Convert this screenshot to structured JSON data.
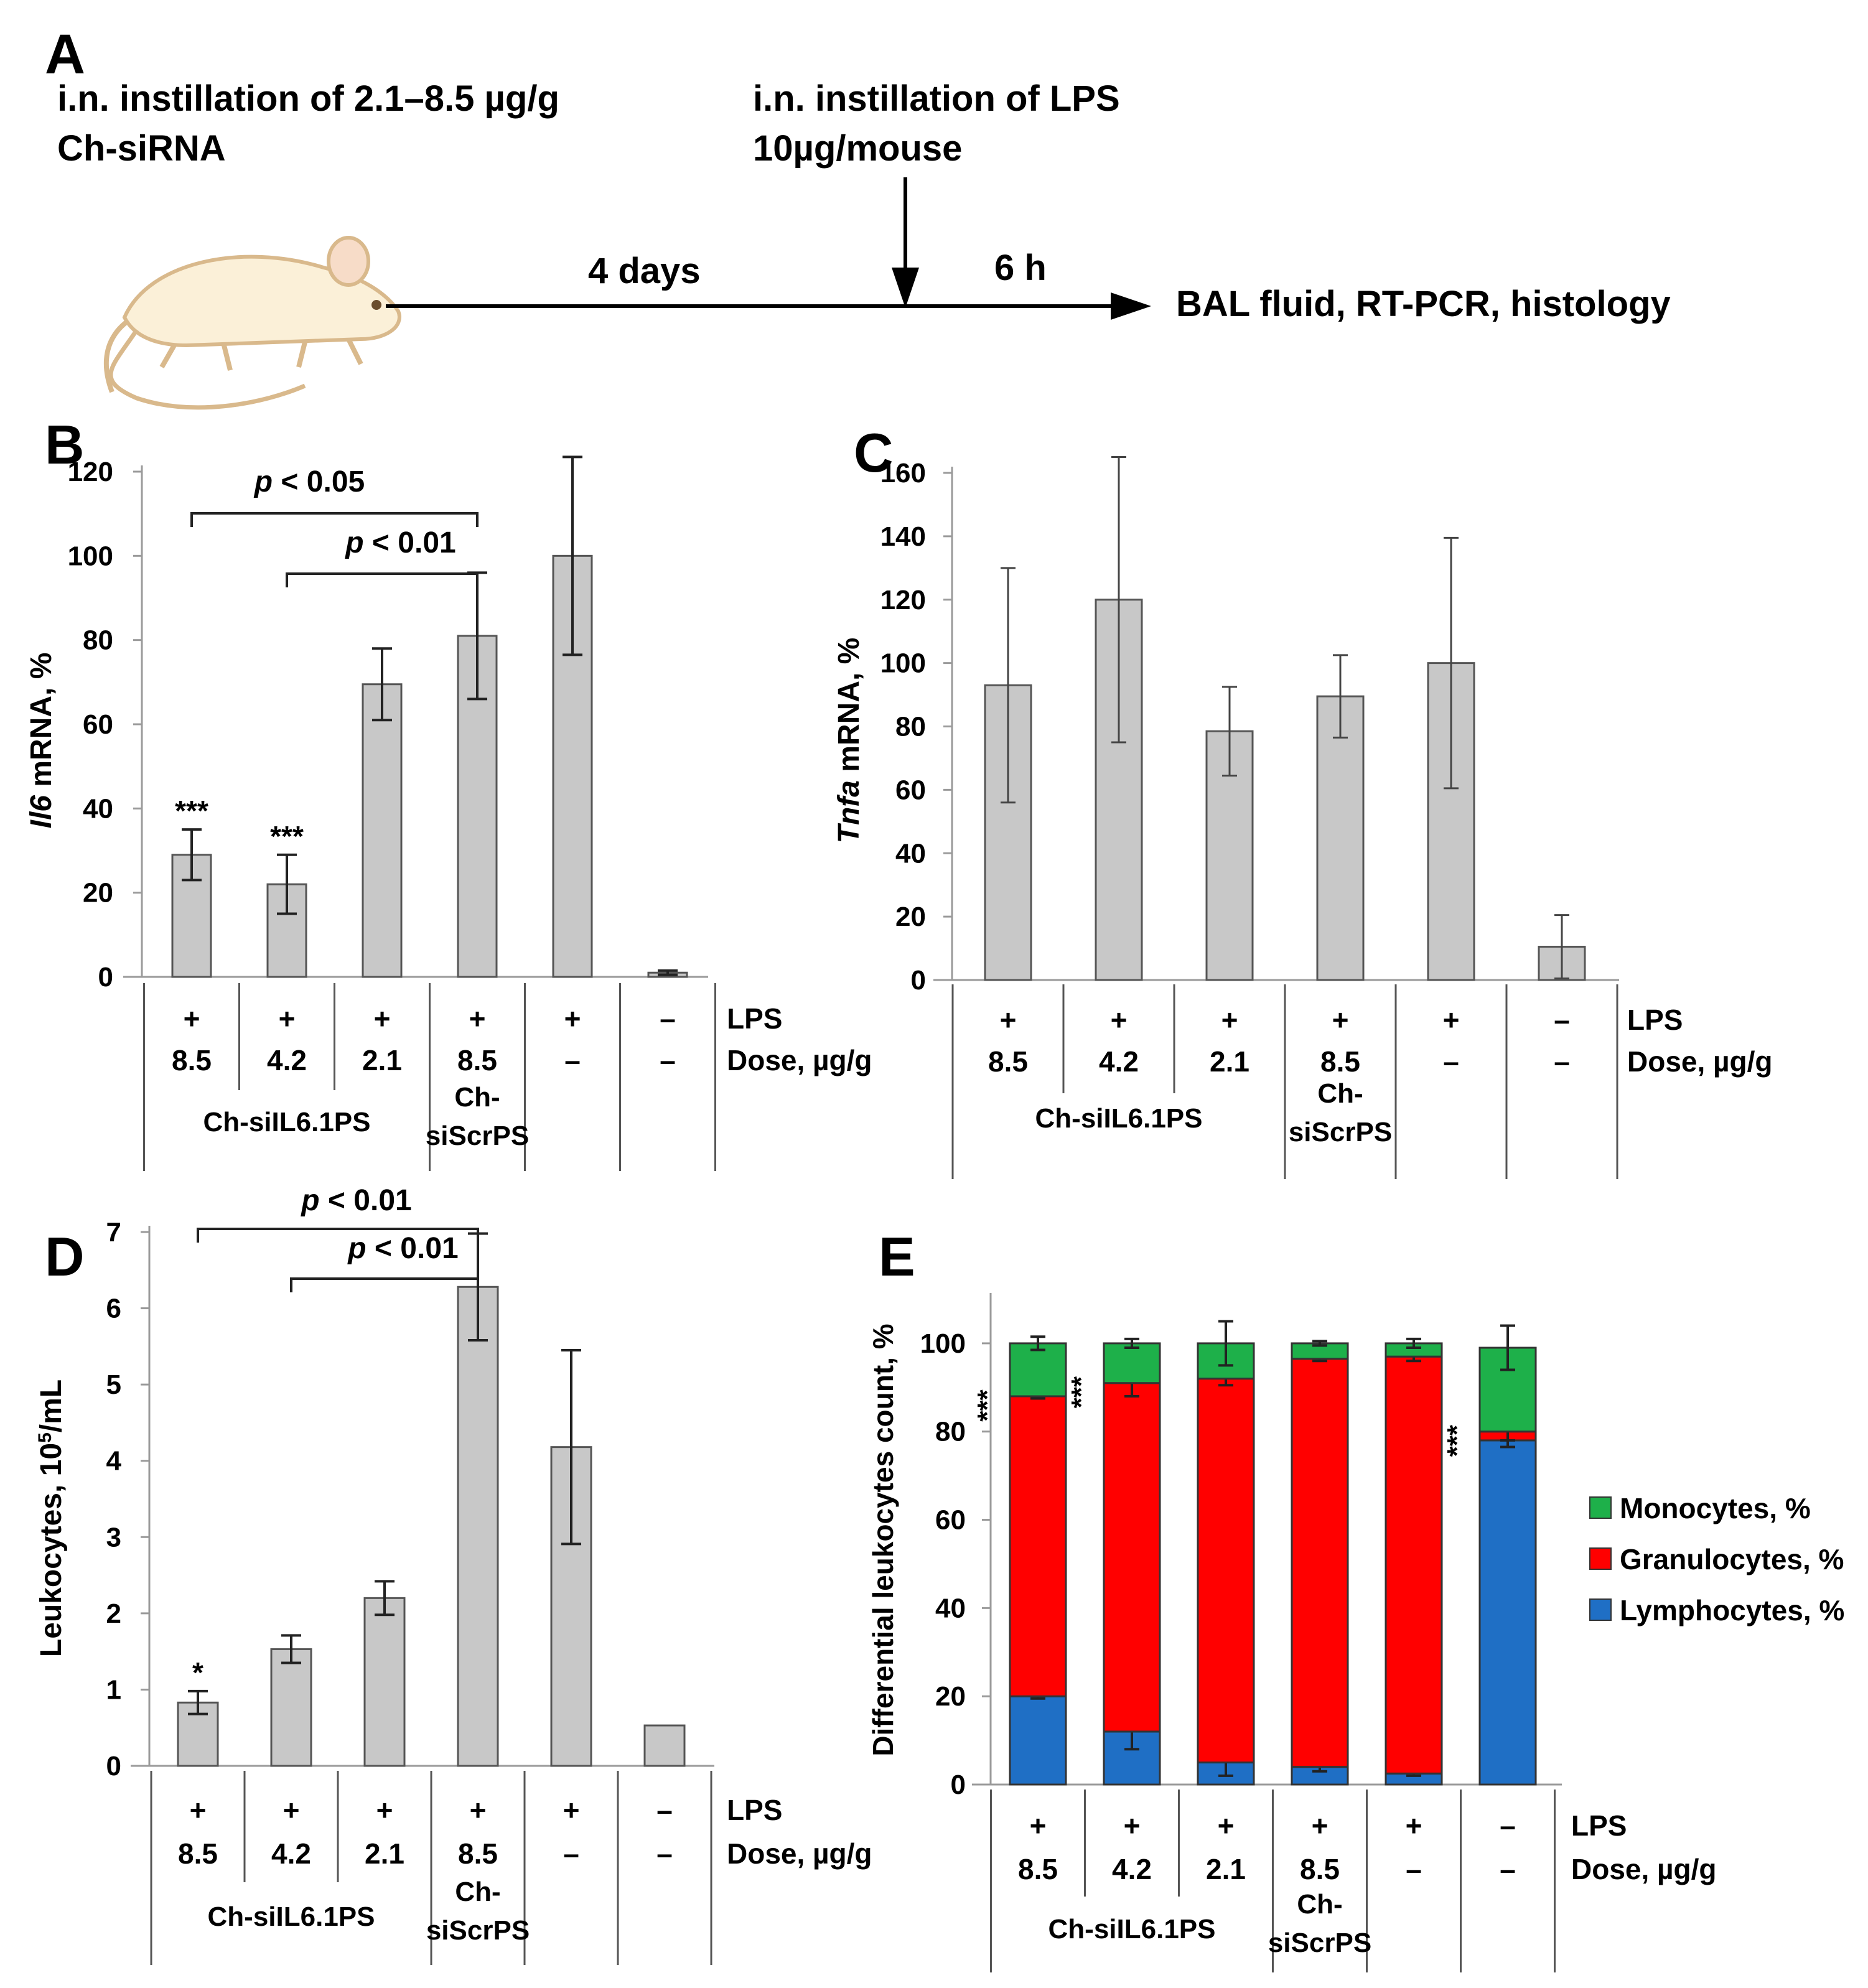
{
  "panel_a": {
    "label": "A",
    "step1_line1": "i.n. instillation of 2.1–8.5 µg/g",
    "step1_line2": "Ch-siRNA",
    "step2_line1": "i.n. instillation of LPS",
    "step2_line2": "10µg/mouse",
    "interval1": "4 days",
    "interval2": "6 h",
    "endpoint": "BAL fluid, RT-PCR, histology",
    "mouse_icon": "mouse-icon"
  },
  "common": {
    "lps_row_label": "LPS",
    "dose_row_label": "Dose, µg/g",
    "lps": [
      "+",
      "+",
      "+",
      "+",
      "+",
      "–"
    ],
    "dose": [
      "8.5",
      "4.2",
      "2.1",
      "8.5",
      "–",
      "–"
    ],
    "group1": "Ch-siIL6.1PS",
    "group2_line1": "Ch-",
    "group2_line2": "siScrPS"
  },
  "chart_data": [
    {
      "panel": "B",
      "type": "bar",
      "ylabel_italic": "Il6",
      "ylabel_rest": " mRNA, %",
      "ylim": [
        0,
        120
      ],
      "yticks": [
        0,
        20,
        40,
        60,
        80,
        100,
        120
      ],
      "values": [
        29,
        22,
        69.5,
        81,
        100,
        1
      ],
      "errors": [
        6,
        7,
        8.5,
        15,
        23.5,
        0.5
      ],
      "annotations": [
        "***",
        "***",
        "",
        "",
        "",
        ""
      ],
      "brackets": [
        {
          "from": 0,
          "to": 3,
          "p_italic": "p",
          "p_rest": " < 0.05"
        },
        {
          "from": 1,
          "to": 3,
          "p_italic": "p",
          "p_rest": " < 0.01"
        }
      ]
    },
    {
      "panel": "C",
      "type": "bar",
      "ylabel_italic": "Tnfa",
      "ylabel_rest": " mRNA, %",
      "ylim": [
        0,
        160
      ],
      "yticks": [
        0,
        20,
        40,
        60,
        80,
        100,
        120,
        140,
        160
      ],
      "values": [
        93,
        120,
        78.5,
        89.5,
        100,
        10.5
      ],
      "errors": [
        37,
        45,
        14,
        13,
        39.5,
        10
      ],
      "annotations": [
        "",
        "",
        "",
        "",
        "",
        ""
      ],
      "brackets": []
    },
    {
      "panel": "D",
      "type": "bar",
      "ylabel_main": "Leukocytes, 10",
      "ylabel_sup": "5",
      "ylabel_tail": "/mL",
      "ylim": [
        0,
        7
      ],
      "yticks": [
        0,
        1,
        2,
        3,
        4,
        5,
        6,
        7
      ],
      "values": [
        0.83,
        1.53,
        2.2,
        6.28,
        4.18,
        0.53
      ],
      "errors": [
        0.15,
        0.18,
        0.22,
        0.7,
        1.27,
        0
      ],
      "annotations": [
        "*",
        "",
        "",
        "",
        "",
        ""
      ],
      "brackets": [
        {
          "from": 0,
          "to": 3,
          "p_italic": "p",
          "p_rest": " < 0.01"
        },
        {
          "from": 1,
          "to": 3,
          "p_italic": "p",
          "p_rest": " < 0.01"
        }
      ]
    },
    {
      "panel": "E",
      "type": "stacked-bar",
      "ylabel": "Differential leukocytes count, %",
      "ylim": [
        0,
        110
      ],
      "yticks": [
        0,
        20,
        40,
        60,
        80,
        100
      ],
      "legend_position": "right",
      "series": [
        {
          "name": "Lymphocytes, %",
          "color": "#1f6fc5",
          "values": [
            20,
            12,
            5,
            4,
            2.5,
            78
          ],
          "errors": [
            0.5,
            4,
            3,
            1,
            0.5,
            1.5
          ]
        },
        {
          "name": "Granulocytes, %",
          "color": "#ff0000",
          "values": [
            68,
            79,
            87,
            92.5,
            94.5,
            2
          ],
          "errors": [
            0.5,
            3,
            1.5,
            0.5,
            1,
            2
          ]
        },
        {
          "name": "Monocytes, %",
          "color": "#1eb04a",
          "values": [
            12,
            9,
            8,
            3.5,
            3,
            19
          ],
          "errors": [
            1.5,
            1,
            5,
            0.5,
            1,
            5
          ]
        }
      ],
      "annotations": [
        "***",
        "***",
        "",
        "",
        "",
        "***"
      ]
    }
  ]
}
